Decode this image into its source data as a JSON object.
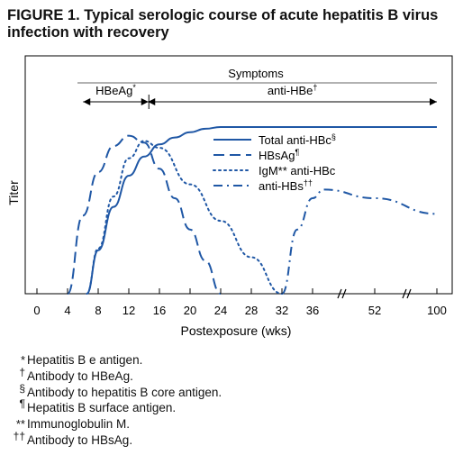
{
  "chart_data": {
    "type": "line",
    "title": "FIGURE 1. Typical serologic course of acute hepatitis B virus infection with recovery",
    "xlabel": "Postexposure (wks)",
    "ylabel": "Titer",
    "x_ticks": [
      "0",
      "4",
      "8",
      "12",
      "16",
      "20",
      "24",
      "28",
      "32",
      "36",
      "52",
      "100"
    ],
    "ylim": [
      0,
      100
    ],
    "y_axis_note": "relative titer, no scale shown",
    "symptoms_label": "Symptoms",
    "periods": [
      {
        "label": "HBeAg",
        "mark": "*",
        "x_start": 6.5,
        "x_end": 14.5
      },
      {
        "label": "anti-HBe",
        "mark": "†",
        "x_start": 14.5,
        "x_end": 100
      }
    ],
    "series": [
      {
        "name": "Total anti-HBc",
        "mark": "§",
        "style": "solid",
        "x": [
          6.5,
          8,
          10,
          12,
          14,
          16,
          18,
          20,
          22,
          24,
          28,
          32,
          36,
          52,
          100
        ],
        "y": [
          0,
          25,
          50,
          68,
          79,
          86,
          90,
          93,
          95,
          96,
          96,
          96,
          96,
          96,
          96
        ]
      },
      {
        "name": "HBsAg",
        "mark": "¶",
        "style": "dashed",
        "x": [
          4,
          6,
          8,
          10,
          12,
          14,
          16,
          18,
          20,
          22,
          24
        ],
        "y": [
          0,
          45,
          70,
          85,
          91,
          87,
          72,
          55,
          37,
          19,
          0
        ]
      },
      {
        "name": "IgM** anti-HBc",
        "mark": "",
        "style": "dotted",
        "x": [
          6.5,
          8,
          10,
          12,
          14,
          16,
          20,
          24,
          28,
          32
        ],
        "y": [
          0,
          26,
          56,
          78,
          88,
          84,
          63,
          42,
          21,
          0
        ]
      },
      {
        "name": "anti-HBs",
        "mark": "††",
        "style": "dashdot",
        "x": [
          32,
          34,
          36,
          38,
          52,
          100
        ],
        "y": [
          0,
          37,
          55,
          60,
          55,
          46
        ]
      }
    ]
  },
  "footnotes": [
    {
      "mark": "*",
      "text": "Hepatitis B e antigen."
    },
    {
      "mark": "†",
      "text": "Antibody to HBeAg."
    },
    {
      "mark": "§",
      "text": "Antibody to hepatitis B core antigen."
    },
    {
      "mark": "¶",
      "text": "Hepatitis B surface antigen."
    },
    {
      "mark": "**",
      "text": "Immunoglobulin M."
    },
    {
      "mark": "††",
      "text": "Antibody to HBsAg."
    }
  ],
  "colors": {
    "line": "#1f57a5",
    "axis": "#000000",
    "symptoms_bar": "#999999"
  }
}
